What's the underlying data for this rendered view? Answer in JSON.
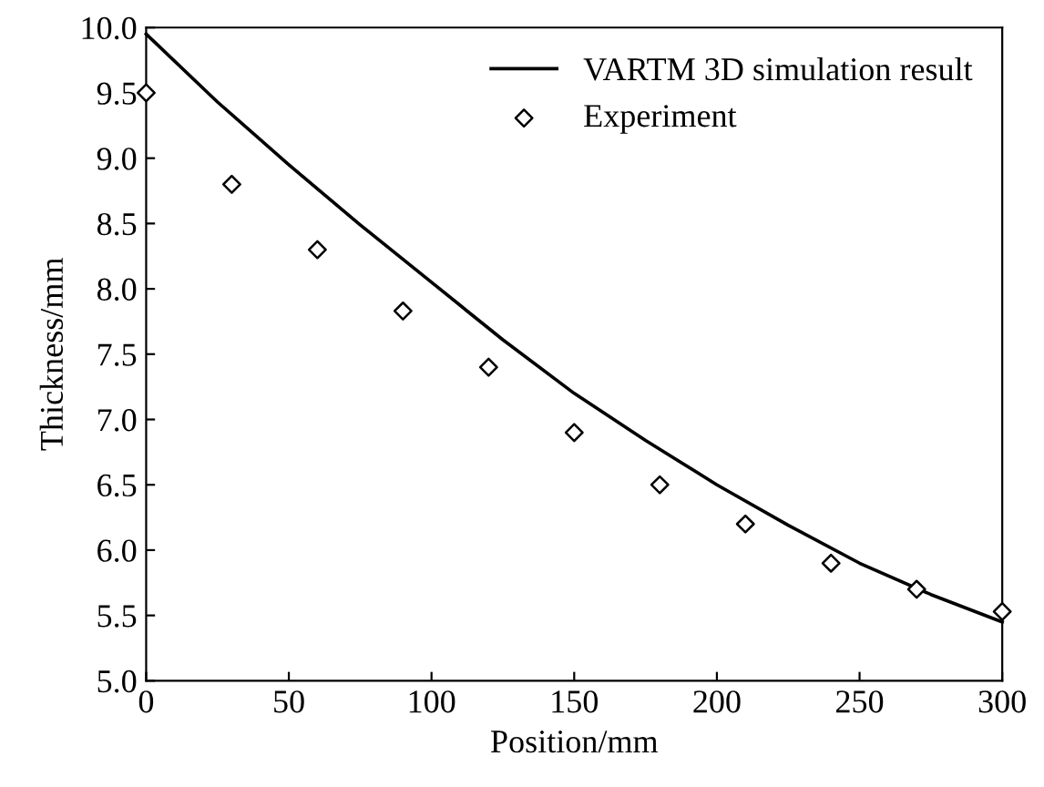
{
  "chart_data": {
    "type": "line",
    "xlabel": "Position/mm",
    "ylabel": "Thickness/mm",
    "xlim": [
      0,
      300
    ],
    "ylim": [
      5.0,
      10.0
    ],
    "xticks": [
      0,
      50,
      100,
      150,
      200,
      250,
      300
    ],
    "yticks": [
      {
        "value": 5.0,
        "label": "5.0"
      },
      {
        "value": 5.5,
        "label": "5.5"
      },
      {
        "value": 6.0,
        "label": "6.0"
      },
      {
        "value": 6.5,
        "label": "6.5"
      },
      {
        "value": 7.0,
        "label": "7.0"
      },
      {
        "value": 7.5,
        "label": "7.5"
      },
      {
        "value": 8.0,
        "label": "8.0"
      },
      {
        "value": 8.5,
        "label": "8.5"
      },
      {
        "value": 9.0,
        "label": "9.0"
      },
      {
        "value": 9.5,
        "label": "9.5"
      },
      {
        "value": 10.0,
        "label": "10.0"
      }
    ],
    "grid": false,
    "legend": "top right",
    "series": [
      {
        "name": "VARTM 3D simulation result",
        "color": "#000000",
        "marker": "none",
        "line_style": "solid",
        "x": [
          0,
          25,
          50,
          75,
          100,
          125,
          150,
          175,
          200,
          225,
          250,
          275,
          300
        ],
        "values": [
          9.95,
          9.43,
          8.95,
          8.49,
          8.05,
          7.61,
          7.2,
          6.84,
          6.5,
          6.19,
          5.9,
          5.66,
          5.45
        ]
      },
      {
        "name": "Experiment",
        "type": "scatter",
        "color": "#000000",
        "marker": "diamond",
        "x": [
          0,
          30,
          60,
          90,
          120,
          150,
          180,
          210,
          240,
          270,
          300
        ],
        "values": [
          9.5,
          8.8,
          8.3,
          7.83,
          7.4,
          6.9,
          6.5,
          6.2,
          5.9,
          5.7,
          5.53
        ]
      }
    ]
  }
}
